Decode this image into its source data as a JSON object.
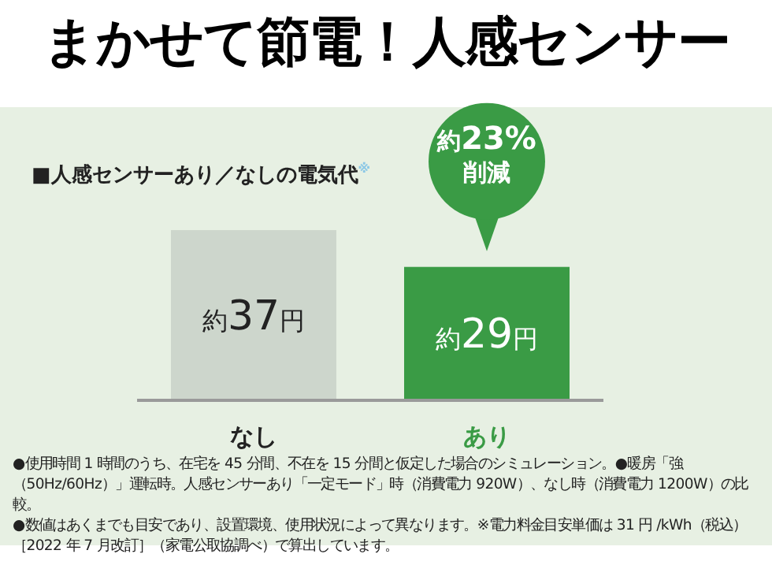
{
  "chart_data": {
    "type": "bar",
    "title": "まかせて節電！人感センサー",
    "subtitle": "■人感センサーあり／なしの電気代$^{※}$",
    "categories": [
      "なし",
      "あり"
    ],
    "values": [
      37,
      29
    ],
    "colors": [
      "#cdd6cc",
      "#3a9b45"
    ],
    "value_labels": [
      "約37円",
      "約29円"
    ],
    "annotations": [
      {
        "text": "約23%\n削減",
        "x": "あり",
        "y": 29
      },
      "●使用時間 1 時間のうち、在宅を 45 分間、不在を 15 分間と仮定した場合のシミュレーション。●暖房「強（50Hz/60Hz）」運転時。人感センサーあり「一定モード」時（消費電力 920W）、なし時（消費電力 1200W）の比較。",
      "●数値はあくまでも目安であり、設置環境、使用状況によって異なります。※電力料金目安単価は 31 円 /kWh（税込）［2022 年 7 月改訂］（家電公取協調べ）で算出しています。"
    ]
  }
}
